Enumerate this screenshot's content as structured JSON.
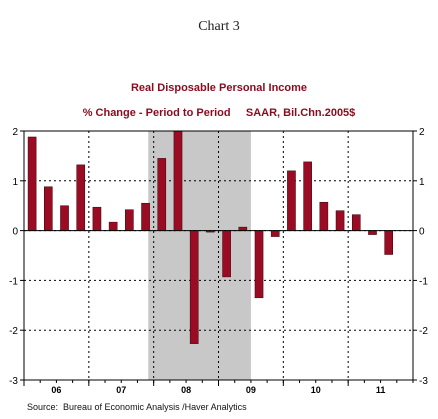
{
  "page_title": "Chart 3",
  "source": "Source:  Bureau of Economic Analysis /Haver Analytics",
  "colors": {
    "bar": "#9a0c24",
    "bar_stroke": "#3a0008",
    "recession_shade": "#c8c8c8",
    "title": "#8b0a1e",
    "grid": "#000000"
  },
  "chart_data": {
    "type": "bar",
    "title": "Real Disposable Personal Income",
    "subtitle": "% Change - Period to Period     SAAR, Bil.Chn.2005$",
    "xlabel": "",
    "ylabel": "",
    "ylim": [
      -3,
      2
    ],
    "yticks": [
      2,
      1,
      0,
      -1,
      -2,
      -3
    ],
    "ytick_labels": [
      "2",
      "1",
      "0",
      "-1",
      "-2",
      "-3"
    ],
    "grid": "dotted",
    "x_start_month": "2006-01",
    "x_end_month": "2011-12",
    "year_labels": [
      {
        "label": "06",
        "start": "2006-01",
        "end": "2006-12"
      },
      {
        "label": "07",
        "start": "2007-01",
        "end": "2007-12"
      },
      {
        "label": "08",
        "start": "2008-01",
        "end": "2008-12"
      },
      {
        "label": "09",
        "start": "2009-01",
        "end": "2009-12"
      },
      {
        "label": "10",
        "start": "2010-01",
        "end": "2010-12"
      },
      {
        "label": "11",
        "start": "2011-01",
        "end": "2011-12"
      }
    ],
    "recession": {
      "start": "2007-12",
      "end": "2009-06"
    },
    "categories": [
      "2006 Q1",
      "2006 Q2",
      "2006 Q3",
      "2006 Q4",
      "2007 Q1",
      "2007 Q2",
      "2007 Q3",
      "2007 Q4",
      "2008 Q1",
      "2008 Q2",
      "2008 Q3",
      "2008 Q4",
      "2009 Q1",
      "2009 Q2",
      "2009 Q3",
      "2009 Q4",
      "2010 Q1",
      "2010 Q2",
      "2010 Q3",
      "2010 Q4",
      "2011 Q1",
      "2011 Q2",
      "2011 Q3",
      "2011 Q4"
    ],
    "values": [
      1.88,
      0.88,
      0.5,
      1.32,
      0.47,
      0.17,
      0.42,
      0.55,
      1.45,
      2.0,
      -2.27,
      -0.03,
      -0.93,
      0.07,
      -1.35,
      -0.12,
      1.2,
      1.38,
      0.57,
      0.4,
      0.32,
      -0.08,
      -0.48,
      null
    ]
  }
}
